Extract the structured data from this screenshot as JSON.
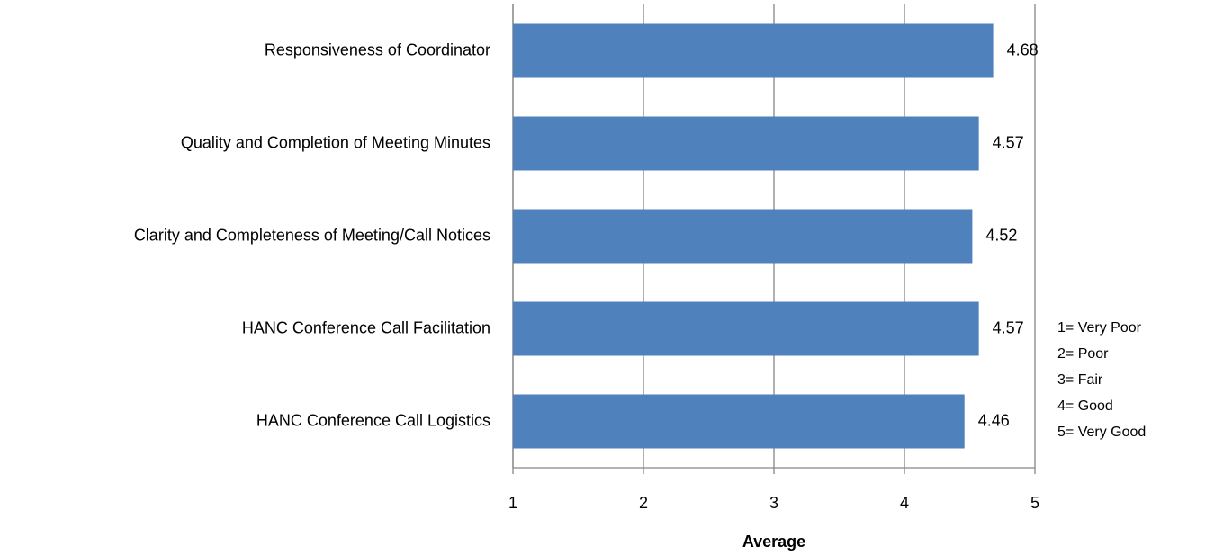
{
  "chart_data": {
    "type": "bar",
    "orientation": "horizontal",
    "categories": [
      "Responsiveness of Coordinator",
      "Quality and Completion of Meeting Minutes",
      "Clarity and Completeness of Meeting/Call Notices",
      "HANC Conference Call Facilitation",
      "HANC Conference Call Logistics"
    ],
    "values": [
      4.68,
      4.57,
      4.52,
      4.57,
      4.46
    ],
    "color": "#4f81bd",
    "xlim": [
      1,
      5
    ],
    "xticks": [
      1,
      2,
      3,
      4,
      5
    ],
    "grid": true,
    "x_label": "Average",
    "notes": [
      "1= Very Poor",
      "2= Poor",
      "3= Fair",
      "4= Good",
      "5= Very Good"
    ]
  }
}
